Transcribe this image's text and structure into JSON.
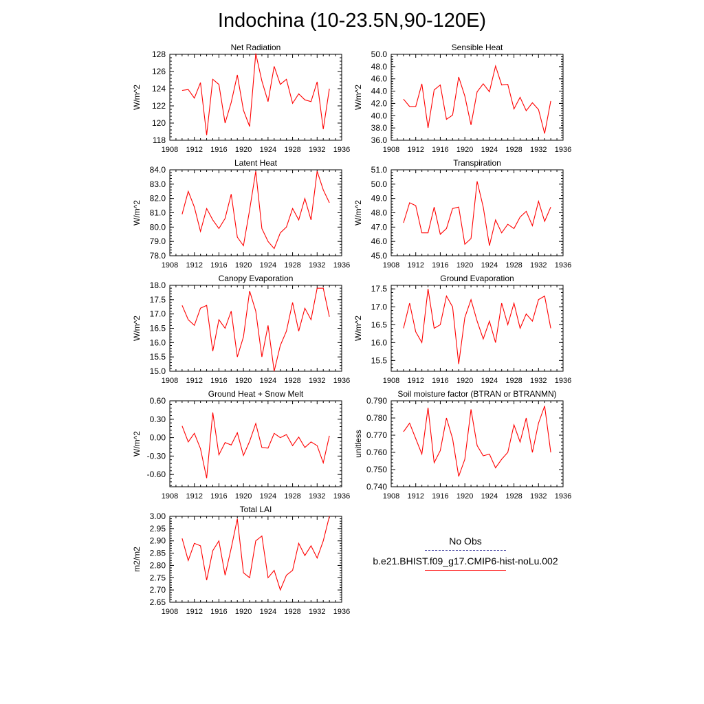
{
  "title": "Indochina (10-23.5N,90-120E)",
  "colors": {
    "model": "#ff0000",
    "obs": "#3b3b9e"
  },
  "legend": {
    "obs_label": "No Obs",
    "model_label": "b.e21.BHIST.f09_g17.CMIP6-hist-noLu.002"
  },
  "chart_data": [
    {
      "type": "line",
      "title": "Net Radiation",
      "ylabel": "W/m^2",
      "xlim": [
        1908,
        1936
      ],
      "ylim": [
        118,
        128
      ],
      "xticks": [
        "1908",
        "1912",
        "1916",
        "1920",
        "1924",
        "1928",
        "1932",
        "1936"
      ],
      "yticks": [
        "118",
        "120",
        "122",
        "124",
        "126",
        "128"
      ],
      "series": [
        {
          "x": [
            1910,
            1911,
            1912,
            1913,
            1914,
            1915,
            1916,
            1917,
            1918,
            1919,
            1920,
            1921,
            1922,
            1923,
            1924,
            1925,
            1926,
            1927,
            1928,
            1929,
            1930,
            1931,
            1932,
            1933,
            1934
          ],
          "values": [
            123.8,
            123.9,
            122.9,
            124.7,
            118.6,
            125.1,
            124.5,
            120.0,
            122.4,
            125.6,
            121.5,
            119.6,
            128.1,
            124.9,
            122.5,
            126.6,
            124.5,
            125.1,
            122.3,
            123.4,
            122.7,
            122.5,
            124.8,
            119.3,
            124.0
          ]
        }
      ]
    },
    {
      "type": "line",
      "title": "Sensible Heat",
      "ylabel": "W/m^2",
      "xlim": [
        1908,
        1936
      ],
      "ylim": [
        36.0,
        50.0
      ],
      "xticks": [
        "1908",
        "1912",
        "1916",
        "1920",
        "1924",
        "1928",
        "1932",
        "1936"
      ],
      "yticks": [
        "36.0",
        "38.0",
        "40.0",
        "42.0",
        "44.0",
        "46.0",
        "48.0",
        "50.0"
      ],
      "series": [
        {
          "x": [
            1910,
            1911,
            1912,
            1913,
            1914,
            1915,
            1916,
            1917,
            1918,
            1919,
            1920,
            1921,
            1922,
            1923,
            1924,
            1925,
            1926,
            1927,
            1928,
            1929,
            1930,
            1931,
            1932,
            1933,
            1934
          ],
          "values": [
            42.7,
            41.5,
            41.5,
            45.2,
            38.0,
            44.2,
            45.0,
            39.4,
            40.1,
            46.3,
            43.2,
            38.5,
            43.9,
            45.2,
            43.9,
            48.1,
            45.0,
            45.1,
            41.1,
            43.0,
            40.8,
            42.1,
            41.0,
            37.1,
            42.4
          ]
        }
      ]
    },
    {
      "type": "line",
      "title": "Latent Heat",
      "ylabel": "W/m^2",
      "xlim": [
        1908,
        1936
      ],
      "ylim": [
        78.0,
        84.0
      ],
      "xticks": [
        "1908",
        "1912",
        "1916",
        "1920",
        "1924",
        "1928",
        "1932",
        "1936"
      ],
      "yticks": [
        "78.0",
        "79.0",
        "80.0",
        "81.0",
        "82.0",
        "83.0",
        "84.0"
      ],
      "series": [
        {
          "x": [
            1910,
            1911,
            1912,
            1913,
            1914,
            1915,
            1916,
            1917,
            1918,
            1919,
            1920,
            1921,
            1922,
            1923,
            1924,
            1925,
            1926,
            1927,
            1928,
            1929,
            1930,
            1931,
            1932,
            1933,
            1934
          ],
          "values": [
            80.9,
            82.5,
            81.4,
            79.7,
            81.3,
            80.5,
            79.9,
            80.6,
            82.3,
            79.3,
            78.7,
            81.2,
            83.9,
            79.9,
            79.0,
            78.5,
            79.6,
            80.0,
            81.3,
            80.5,
            82.0,
            80.5,
            83.9,
            82.6,
            81.7
          ]
        }
      ]
    },
    {
      "type": "line",
      "title": "Transpiration",
      "ylabel": "W/m^2",
      "xlim": [
        1908,
        1936
      ],
      "ylim": [
        45.0,
        51.0
      ],
      "xticks": [
        "1908",
        "1912",
        "1916",
        "1920",
        "1924",
        "1928",
        "1932",
        "1936"
      ],
      "yticks": [
        "45.0",
        "46.0",
        "47.0",
        "48.0",
        "49.0",
        "50.0",
        "51.0"
      ],
      "series": [
        {
          "x": [
            1910,
            1911,
            1912,
            1913,
            1914,
            1915,
            1916,
            1917,
            1918,
            1919,
            1920,
            1921,
            1922,
            1923,
            1924,
            1925,
            1926,
            1927,
            1928,
            1929,
            1930,
            1931,
            1932,
            1933,
            1934
          ],
          "values": [
            47.3,
            48.7,
            48.5,
            46.6,
            46.6,
            48.4,
            46.5,
            46.9,
            48.3,
            48.4,
            45.8,
            46.2,
            50.2,
            48.4,
            45.7,
            47.5,
            46.6,
            47.2,
            46.9,
            47.7,
            48.1,
            47.1,
            48.8,
            47.4,
            48.4
          ]
        }
      ]
    },
    {
      "type": "line",
      "title": "Canopy Evaporation",
      "ylabel": "W/m^2",
      "xlim": [
        1908,
        1936
      ],
      "ylim": [
        15.0,
        18.0
      ],
      "xticks": [
        "1908",
        "1912",
        "1916",
        "1920",
        "1924",
        "1928",
        "1932",
        "1936"
      ],
      "yticks": [
        "15.0",
        "15.5",
        "16.0",
        "16.5",
        "17.0",
        "17.5",
        "18.0"
      ],
      "series": [
        {
          "x": [
            1910,
            1911,
            1912,
            1913,
            1914,
            1915,
            1916,
            1917,
            1918,
            1919,
            1920,
            1921,
            1922,
            1923,
            1924,
            1925,
            1926,
            1927,
            1928,
            1929,
            1930,
            1931,
            1932,
            1933,
            1934
          ],
          "values": [
            17.3,
            16.8,
            16.6,
            17.2,
            17.3,
            15.7,
            16.8,
            16.5,
            17.1,
            15.5,
            16.2,
            17.8,
            17.1,
            15.5,
            16.6,
            15.0,
            15.9,
            16.4,
            17.4,
            16.4,
            17.2,
            16.8,
            17.9,
            17.9,
            16.9
          ]
        }
      ]
    },
    {
      "type": "line",
      "title": "Ground Evaporation",
      "ylabel": "W/m^2",
      "xlim": [
        1908,
        1936
      ],
      "ylim": [
        15.2,
        17.6
      ],
      "xticks": [
        "1908",
        "1912",
        "1916",
        "1920",
        "1924",
        "1928",
        "1932",
        "1936"
      ],
      "yticks": [
        "15.5",
        "16.0",
        "16.5",
        "17.0",
        "17.5"
      ],
      "series": [
        {
          "x": [
            1910,
            1911,
            1912,
            1913,
            1914,
            1915,
            1916,
            1917,
            1918,
            1919,
            1920,
            1921,
            1922,
            1923,
            1924,
            1925,
            1926,
            1927,
            1928,
            1929,
            1930,
            1931,
            1932,
            1933,
            1934
          ],
          "values": [
            16.4,
            17.1,
            16.3,
            16.0,
            17.5,
            16.4,
            16.5,
            17.3,
            17.0,
            15.4,
            16.7,
            17.2,
            16.6,
            16.1,
            16.6,
            16.0,
            17.1,
            16.5,
            17.1,
            16.4,
            16.8,
            16.6,
            17.2,
            17.3,
            16.4
          ]
        }
      ]
    },
    {
      "type": "line",
      "title": "Ground Heat + Snow Melt",
      "ylabel": "W/m^2",
      "xlim": [
        1908,
        1936
      ],
      "ylim": [
        -0.8,
        0.6
      ],
      "xticks": [
        "1908",
        "1912",
        "1916",
        "1920",
        "1924",
        "1928",
        "1932",
        "1936"
      ],
      "yticks": [
        "-0.60",
        "-0.30",
        "0.00",
        "0.30",
        "0.60"
      ],
      "series": [
        {
          "x": [
            1910,
            1911,
            1912,
            1913,
            1914,
            1915,
            1916,
            1917,
            1918,
            1919,
            1920,
            1921,
            1922,
            1923,
            1924,
            1925,
            1926,
            1927,
            1928,
            1929,
            1930,
            1931,
            1932,
            1933,
            1934
          ],
          "values": [
            0.19,
            -0.07,
            0.07,
            -0.18,
            -0.66,
            0.41,
            -0.28,
            -0.08,
            -0.12,
            0.08,
            -0.29,
            -0.06,
            0.23,
            -0.16,
            -0.17,
            0.07,
            0.0,
            0.05,
            -0.13,
            0.01,
            -0.16,
            -0.07,
            -0.13,
            -0.41,
            0.03
          ]
        }
      ]
    },
    {
      "type": "line",
      "title": "Soil moisture factor (BTRAN or BTRANMN)",
      "ylabel": "unitless",
      "xlim": [
        1908,
        1936
      ],
      "ylim": [
        0.74,
        0.79
      ],
      "xticks": [
        "1908",
        "1912",
        "1916",
        "1920",
        "1924",
        "1928",
        "1932",
        "1936"
      ],
      "yticks": [
        "0.740",
        "0.750",
        "0.760",
        "0.770",
        "0.780",
        "0.790"
      ],
      "series": [
        {
          "x": [
            1910,
            1911,
            1912,
            1913,
            1914,
            1915,
            1916,
            1917,
            1918,
            1919,
            1920,
            1921,
            1922,
            1923,
            1924,
            1925,
            1926,
            1927,
            1928,
            1929,
            1930,
            1931,
            1932,
            1933,
            1934
          ],
          "values": [
            0.772,
            0.777,
            0.768,
            0.759,
            0.786,
            0.754,
            0.761,
            0.78,
            0.768,
            0.746,
            0.756,
            0.785,
            0.764,
            0.758,
            0.759,
            0.751,
            0.756,
            0.76,
            0.776,
            0.766,
            0.78,
            0.76,
            0.777,
            0.787,
            0.76
          ]
        }
      ]
    },
    {
      "type": "line",
      "title": "Total LAI",
      "ylabel": "m2/m2",
      "xlim": [
        1908,
        1936
      ],
      "ylim": [
        2.65,
        3.0
      ],
      "xticks": [
        "1908",
        "1912",
        "1916",
        "1920",
        "1924",
        "1928",
        "1932",
        "1936"
      ],
      "yticks": [
        "2.65",
        "2.70",
        "2.75",
        "2.80",
        "2.85",
        "2.90",
        "2.95",
        "3.00"
      ],
      "series": [
        {
          "x": [
            1910,
            1911,
            1912,
            1913,
            1914,
            1915,
            1916,
            1917,
            1918,
            1919,
            1920,
            1921,
            1922,
            1923,
            1924,
            1925,
            1926,
            1927,
            1928,
            1929,
            1930,
            1931,
            1932,
            1933,
            1934
          ],
          "values": [
            2.91,
            2.82,
            2.89,
            2.88,
            2.74,
            2.86,
            2.9,
            2.76,
            2.87,
            2.99,
            2.77,
            2.75,
            2.9,
            2.92,
            2.75,
            2.78,
            2.7,
            2.76,
            2.78,
            2.89,
            2.84,
            2.88,
            2.83,
            2.9,
            3.0
          ]
        }
      ]
    }
  ]
}
